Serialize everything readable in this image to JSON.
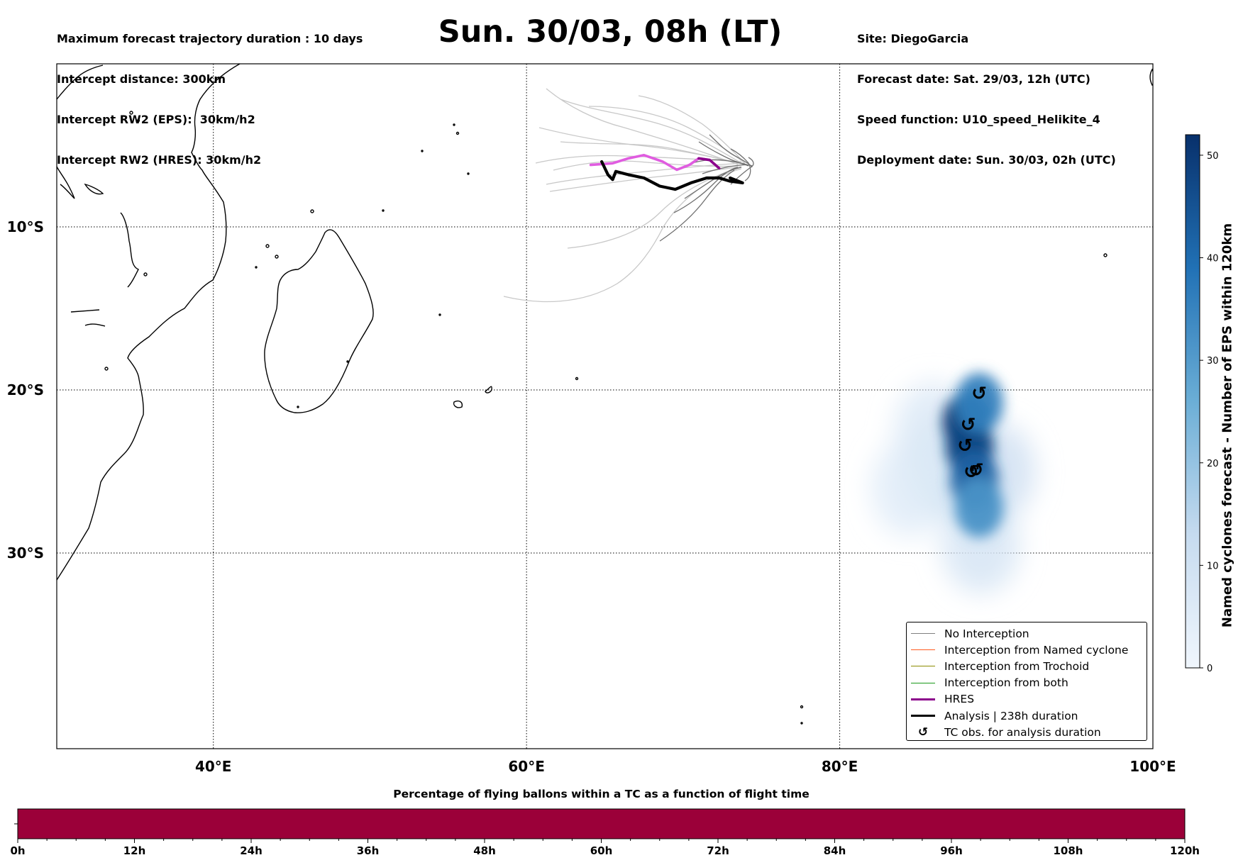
{
  "header": {
    "left": [
      "Maximum forecast trajectory duration : 10 days",
      "Intercept distance: 300km",
      "Intercept RW2 (EPS):  30km/h2",
      "Intercept RW2 (HRES): 30km/h2"
    ],
    "title": "Sun. 30/03, 08h (LT)",
    "right": [
      "Site: DiegoGarcia",
      "Forecast date: Sat. 29/03, 12h (UTC)",
      "Speed function: U10_speed_Helikite_4",
      "Deployment date: Sun. 30/03, 02h (UTC)"
    ]
  },
  "map": {
    "lon_range": [
      30,
      100
    ],
    "lat_range": [
      -42,
      0
    ],
    "lon_ticks": [
      {
        "value": 40,
        "label": "40°E"
      },
      {
        "value": 60,
        "label": "60°E"
      },
      {
        "value": 80,
        "label": "80°E"
      },
      {
        "value": 100,
        "label": "100°E"
      }
    ],
    "lat_ticks": [
      {
        "value": -10,
        "label": "10°S"
      },
      {
        "value": -20,
        "label": "20°S"
      },
      {
        "value": -30,
        "label": "30°S"
      }
    ],
    "hres_color": "#8b008b",
    "hres_highlight": "#e05ce0",
    "analysis_color": "#000000",
    "hres_track": [
      [
        64.1,
        -6.2
      ],
      [
        65.5,
        -6.1
      ],
      [
        66.5,
        -5.8
      ],
      [
        67.5,
        -5.6
      ],
      [
        68.7,
        -6.0
      ],
      [
        69.6,
        -6.5
      ],
      [
        70.4,
        -6.2
      ],
      [
        71.0,
        -5.8
      ],
      [
        71.7,
        -5.9
      ],
      [
        72.3,
        -6.4
      ]
    ],
    "analysis_track": [
      [
        64.8,
        -6.0
      ],
      [
        65.2,
        -6.8
      ],
      [
        65.5,
        -7.1
      ],
      [
        65.7,
        -6.6
      ],
      [
        66.5,
        -6.8
      ],
      [
        67.5,
        -7.0
      ],
      [
        68.5,
        -7.5
      ],
      [
        69.5,
        -7.7
      ],
      [
        70.5,
        -7.3
      ],
      [
        71.5,
        -7.0
      ],
      [
        72.3,
        -7.0
      ],
      [
        73.0,
        -7.2
      ],
      [
        73.8,
        -7.3
      ],
      [
        73.0,
        -7.0
      ]
    ],
    "tc_observations": [
      [
        88.9,
        -20.2
      ],
      [
        88.2,
        -22.1
      ],
      [
        88.0,
        -23.4
      ],
      [
        88.7,
        -24.9
      ],
      [
        88.4,
        -25.0
      ]
    ],
    "density_cells": [
      {
        "lon": 88.1,
        "lat": -22.0,
        "value": 50
      },
      {
        "lon": 88.3,
        "lat": -23.5,
        "value": 48
      },
      {
        "lon": 88.6,
        "lat": -25.5,
        "value": 42
      },
      {
        "lon": 88.9,
        "lat": -27.2,
        "value": 32
      },
      {
        "lon": 88.9,
        "lat": -20.8,
        "value": 36
      },
      {
        "lon": 86.6,
        "lat": -24.8,
        "value": 14
      },
      {
        "lon": 90.0,
        "lat": -25.0,
        "value": 10
      },
      {
        "lon": 89.0,
        "lat": -29.5,
        "value": 8
      },
      {
        "lon": 84.5,
        "lat": -26.0,
        "value": 5
      },
      {
        "lon": 86.0,
        "lat": -22.5,
        "value": 6
      }
    ]
  },
  "legend": {
    "items": [
      {
        "label": "No Interception",
        "color": "#808080",
        "kind": "line-thin"
      },
      {
        "label": "Interception from Named cyclone",
        "color": "#ff5a1f",
        "kind": "line-thin"
      },
      {
        "label": "Interception from Trochoid",
        "color": "#8b8b00",
        "kind": "line-thin"
      },
      {
        "label": "Interception from both",
        "color": "#1a9a1a",
        "kind": "line-thin"
      },
      {
        "label": "HRES",
        "color": "#8b008b",
        "kind": "line-thick"
      },
      {
        "label": "Analysis | 238h duration",
        "color": "#000000",
        "kind": "line-thick"
      },
      {
        "label": "TC obs. for analysis duration",
        "color": "#000000",
        "kind": "marker"
      }
    ]
  },
  "colorbar": {
    "label": "Named cyclones forecast - Number of EPS within 120km",
    "min": 0,
    "max": 52,
    "ticks": [
      0,
      10,
      20,
      30,
      40,
      50
    ]
  },
  "bottom_bar": {
    "title": "Percentage of flying ballons within a TC as a function of flight time",
    "color": "#9b0039",
    "ticks": [
      "0h",
      "12h",
      "24h",
      "36h",
      "48h",
      "60h",
      "72h",
      "84h",
      "96h",
      "108h",
      "120h"
    ]
  }
}
